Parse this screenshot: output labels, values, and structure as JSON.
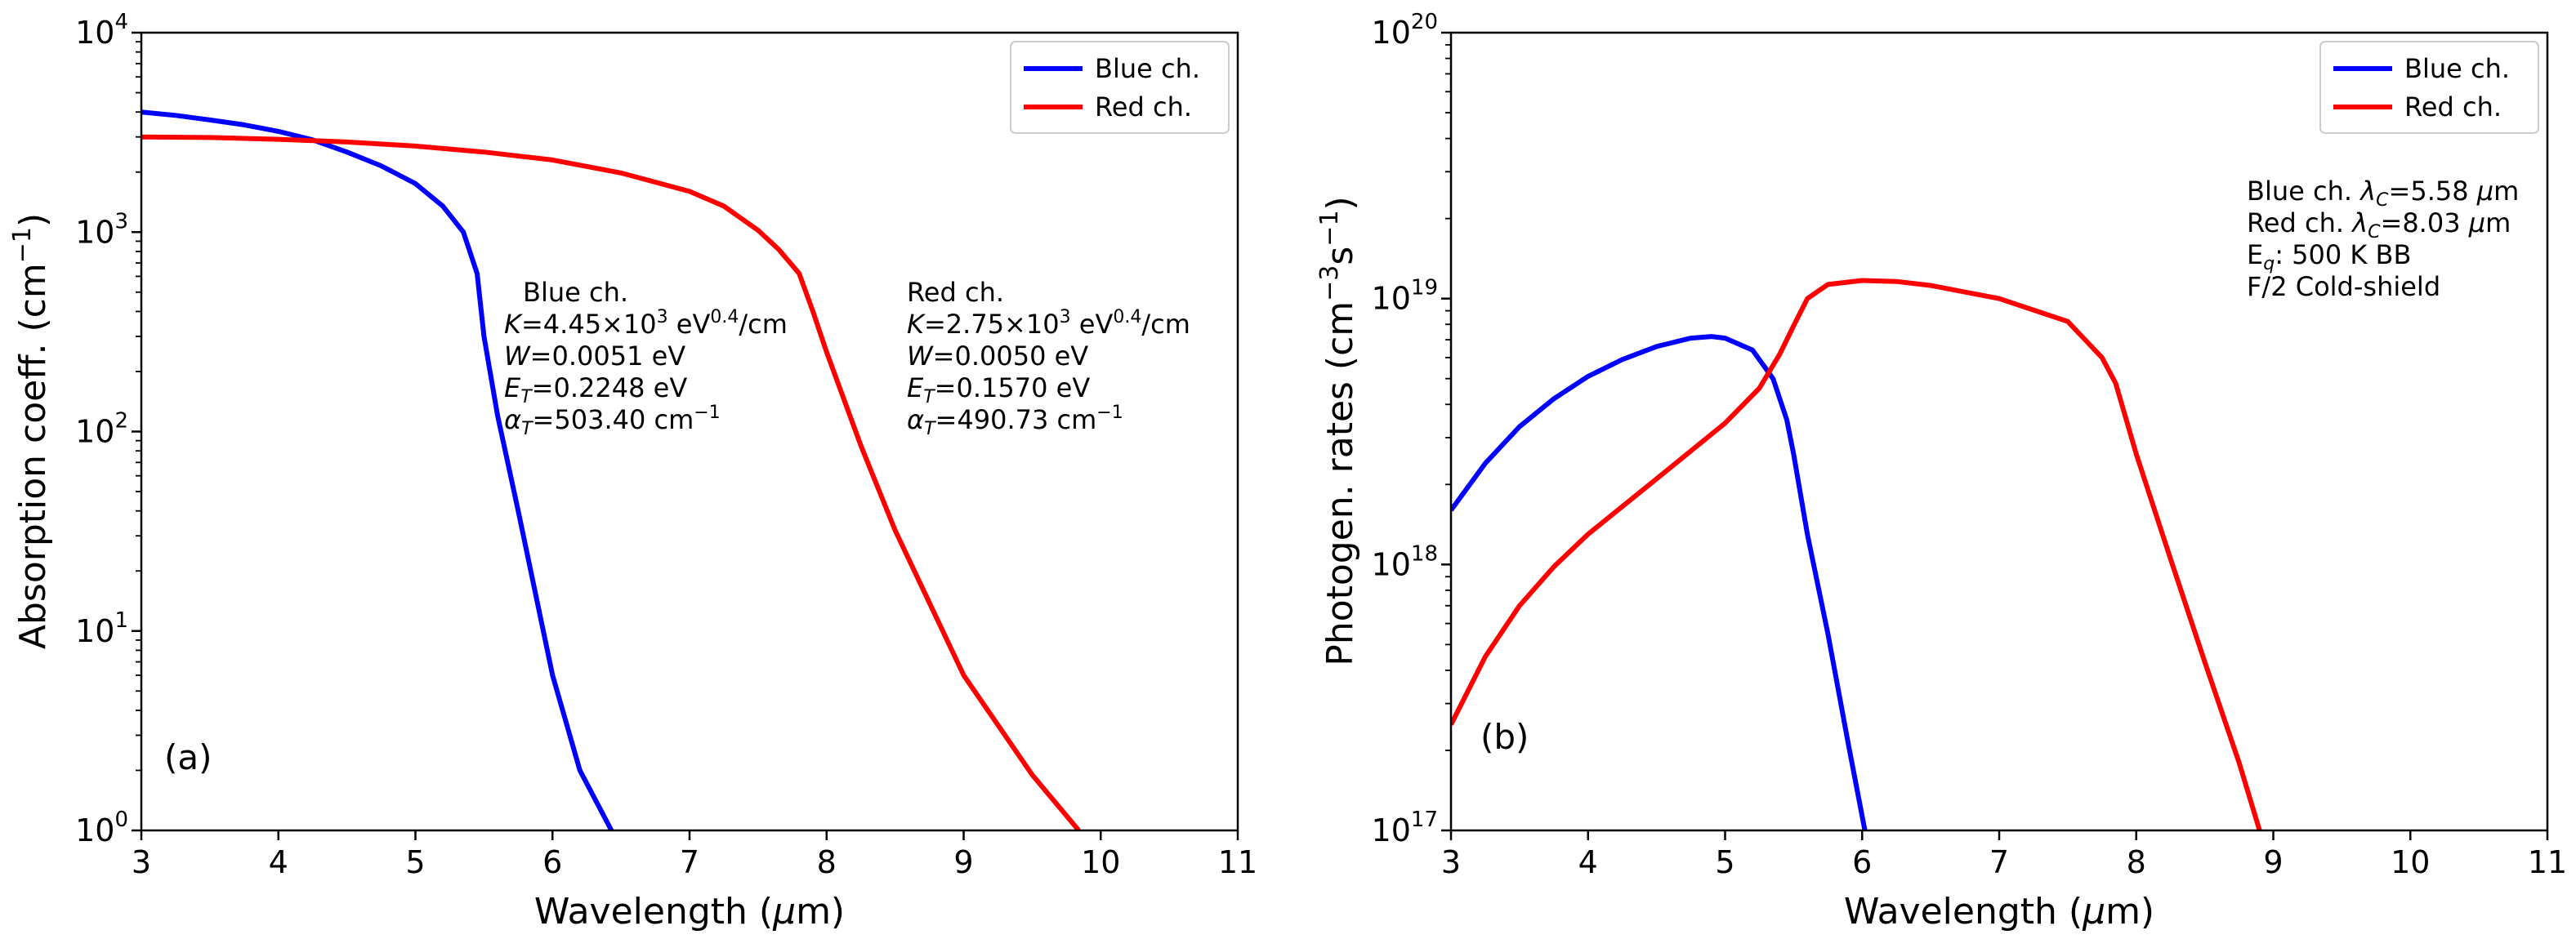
{
  "chart_data": [
    {
      "panel_label": "(a)",
      "type": "line",
      "yscale": "log",
      "xlabel": "Wavelength (μm)",
      "ylabel": "Absorption coeff. (cm⁻¹)",
      "xlim": [
        3,
        11
      ],
      "ylim": [
        1,
        10000
      ],
      "xticks": [
        "3",
        "4",
        "5",
        "6",
        "7",
        "8",
        "9",
        "10",
        "11"
      ],
      "yticks": [
        {
          "value": 1,
          "mantissa": "10",
          "exp": "0"
        },
        {
          "value": 10,
          "mantissa": "10",
          "exp": "1"
        },
        {
          "value": 100,
          "mantissa": "10",
          "exp": "2"
        },
        {
          "value": 1000,
          "mantissa": "10",
          "exp": "3"
        },
        {
          "value": 10000,
          "mantissa": "10",
          "exp": "4"
        }
      ],
      "legend": {
        "location": "top-right",
        "entries": [
          "Blue ch.",
          "Red ch."
        ]
      },
      "series": [
        {
          "name": "Blue ch.",
          "color": "#0000ff",
          "x": [
            3.0,
            3.25,
            3.5,
            3.75,
            4.0,
            4.25,
            4.5,
            4.75,
            5.0,
            5.2,
            5.35,
            5.45,
            5.5,
            5.6,
            5.75,
            6.0,
            6.2,
            6.43
          ],
          "y": [
            4000,
            3850,
            3650,
            3450,
            3200,
            2900,
            2520,
            2150,
            1750,
            1350,
            1000,
            620,
            300,
            120,
            40,
            6,
            2,
            1
          ]
        },
        {
          "name": "Red ch.",
          "color": "#ff0000",
          "x": [
            3.0,
            3.5,
            4.0,
            4.5,
            5.0,
            5.5,
            6.0,
            6.5,
            7.0,
            7.25,
            7.5,
            7.65,
            7.8,
            7.9,
            8.0,
            8.25,
            8.5,
            9.0,
            9.5,
            9.84
          ],
          "y": [
            3000,
            2980,
            2920,
            2830,
            2700,
            2520,
            2300,
            1980,
            1600,
            1350,
            1020,
            820,
            620,
            400,
            250,
            85,
            32,
            6,
            1.9,
            1
          ]
        }
      ],
      "annotations": [
        {
          "lines": [
            "Blue ch.",
            "K=4.45×10³ eV⁰·⁴/cm",
            "W=0.0051 eV",
            "E_T=0.2248 eV",
            "α_T=503.40 cm⁻¹"
          ]
        },
        {
          "lines": [
            "Red ch.",
            "K=2.75×10³ eV⁰·⁴/cm",
            "W=0.0050 eV",
            "E_T=0.1570 eV",
            "α_T=490.73 cm⁻¹"
          ]
        }
      ]
    },
    {
      "panel_label": "(b)",
      "type": "line",
      "yscale": "log",
      "xlabel": "Wavelength (μm)",
      "ylabel": "Photogen. rates (cm⁻³s⁻¹)",
      "xlim": [
        3,
        11
      ],
      "ylim": [
        1e+17,
        1e+20
      ],
      "xticks": [
        "3",
        "4",
        "5",
        "6",
        "7",
        "8",
        "9",
        "10",
        "11"
      ],
      "yticks": [
        {
          "value": 1e+17,
          "mantissa": "10",
          "exp": "17"
        },
        {
          "value": 1e+18,
          "mantissa": "10",
          "exp": "18"
        },
        {
          "value": 1e+19,
          "mantissa": "10",
          "exp": "19"
        },
        {
          "value": 1e+20,
          "mantissa": "10",
          "exp": "20"
        }
      ],
      "legend": {
        "location": "top-right",
        "entries": [
          "Blue ch.",
          "Red ch."
        ]
      },
      "series": [
        {
          "name": "Blue ch.",
          "color": "#0000ff",
          "x": [
            3.0,
            3.25,
            3.5,
            3.75,
            4.0,
            4.25,
            4.5,
            4.75,
            4.9,
            5.0,
            5.2,
            5.35,
            5.45,
            5.5,
            5.6,
            5.75,
            5.9,
            6.02
          ],
          "y": [
            1.6e+18,
            2.4e+18,
            3.3e+18,
            4.2e+18,
            5.1e+18,
            5.9e+18,
            6.6e+18,
            7.1e+18,
            7.2e+18,
            7.1e+18,
            6.4e+18,
            5e+18,
            3.5e+18,
            2.6e+18,
            1.3e+18,
            5.5e+17,
            2.1e+17,
            1e+17
          ]
        },
        {
          "name": "Red ch.",
          "color": "#ff0000",
          "x": [
            3.0,
            3.25,
            3.5,
            3.75,
            4.0,
            4.5,
            5.0,
            5.25,
            5.4,
            5.5,
            5.6,
            5.75,
            6.0,
            6.25,
            6.5,
            7.0,
            7.5,
            7.75,
            7.85,
            8.0,
            8.25,
            8.5,
            8.75,
            8.9
          ],
          "y": [
            2.5e+17,
            4.5e+17,
            7e+17,
            9.8e+17,
            1.3e+18,
            2.1e+18,
            3.4e+18,
            4.6e+18,
            6.2e+18,
            7.9e+18,
            1e+19,
            1.13e+19,
            1.17e+19,
            1.16e+19,
            1.12e+19,
            1e+19,
            8.2e+18,
            6e+18,
            4.8e+18,
            2.6e+18,
            1.05e+18,
            4.3e+17,
            1.8e+17,
            1e+17
          ]
        }
      ],
      "annotations": [
        {
          "lines": [
            "Blue ch. λ_C=5.58 μm",
            "Red ch. λ_C=8.03 μm",
            "E_q: 500 K BB",
            "F/2 Cold-shield"
          ]
        }
      ]
    }
  ]
}
